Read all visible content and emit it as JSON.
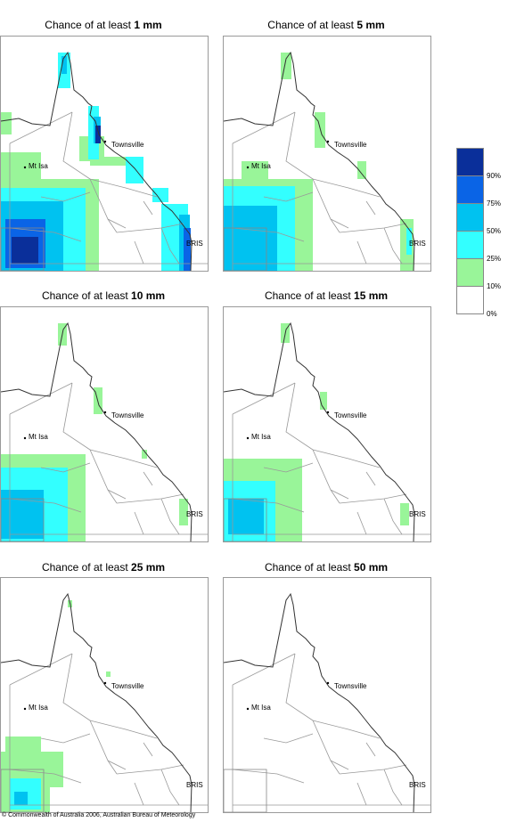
{
  "title_prefix": "Chance of at least",
  "panels": [
    {
      "amount": "1 mm",
      "pattern": "p1"
    },
    {
      "amount": "5 mm",
      "pattern": "p5"
    },
    {
      "amount": "10 mm",
      "pattern": "p10"
    },
    {
      "amount": "15 mm",
      "pattern": "p15"
    },
    {
      "amount": "25 mm",
      "pattern": "p25"
    },
    {
      "amount": "50 mm",
      "pattern": "p50"
    }
  ],
  "cities": {
    "townsville": "Townsville",
    "mt_isa": "Mt Isa",
    "bris": "BRIS"
  },
  "legend": {
    "labels": [
      "90%",
      "75%",
      "50%",
      "25%",
      "10%",
      "0%"
    ],
    "colors": [
      "#0a2f9a",
      "#0a64e6",
      "#00c2f0",
      "#33ffff",
      "#99f599",
      "#ffffff"
    ]
  },
  "copyright": "© Commonwealth of Australia 2006, Australian Bureau of Meteorology"
}
